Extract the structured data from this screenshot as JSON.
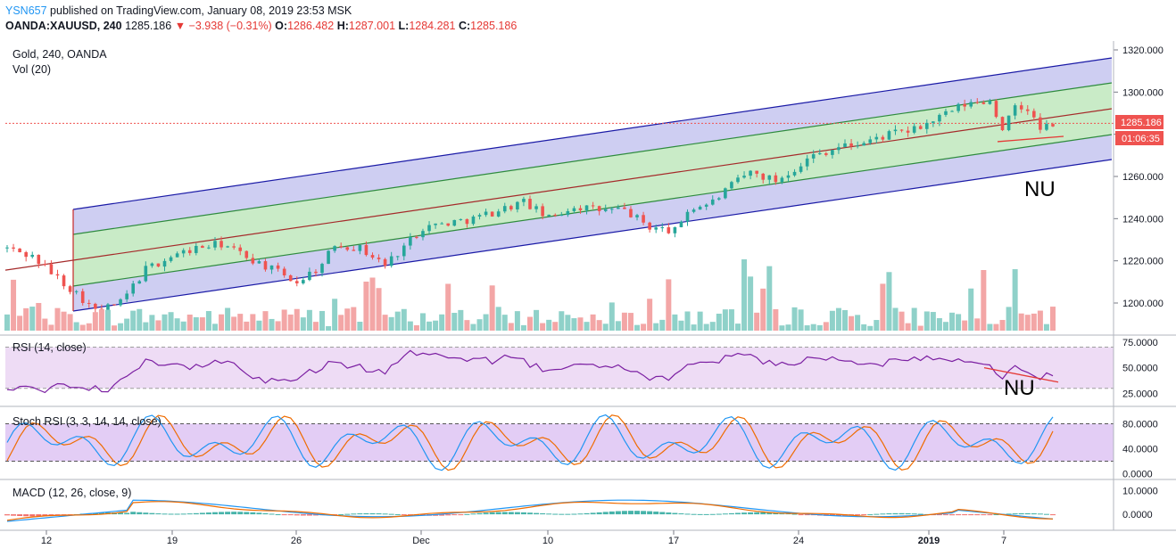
{
  "header": {
    "user": "YSN657",
    "published": "published on TradingView.com, January 08, 2019 23:53 MSK",
    "symbol": "OANDA:XAUUSD, 240",
    "last": "1285.186",
    "change_arrow": "▼",
    "change": "−3.938 (−0.31%)",
    "o_label": "O:",
    "o_value": "1286.482",
    "h_label": "H:",
    "h_value": "1287.001",
    "l_label": "L:",
    "l_value": "1284.281",
    "c_label": "C:",
    "c_value": "1285.186"
  },
  "panes": {
    "main_title": "Gold, 240, OANDA",
    "vol_title": "Vol (20)",
    "rsi_title": "RSI (14, close)",
    "stoch_title": "Stoch RSI (3, 3, 14, 14, close)",
    "macd_title": "MACD (12, 26, close, 9)"
  },
  "annotations": {
    "nu_main": "NU",
    "nu_rsi": "NU"
  },
  "price_badges": {
    "last_price": "1285.186",
    "countdown": "01:06:35"
  },
  "x_axis": {
    "labels": [
      "12",
      "19",
      "26",
      "Dec",
      "10",
      "17",
      "24",
      "2019",
      "7"
    ]
  },
  "colors": {
    "up": "#26a69a",
    "down": "#ef5350",
    "channel_outer": "#1a1aa6",
    "channel_mid": "#2e8b3e",
    "channel_center": "#a52a2a",
    "rsi_line": "#7b1fa2",
    "stoch_k": "#2196f3",
    "stoch_d": "#ef6c00"
  },
  "chart_data": [
    {
      "type": "candlestick",
      "title": "Gold, 240, OANDA",
      "ylim": [
        1185,
        1322
      ],
      "y_ticks": [
        "1320.000",
        "1300.000",
        "1280.000",
        "1260.000",
        "1240.000",
        "1220.000",
        "1200.000"
      ],
      "close_path": [
        [
          0,
          1226
        ],
        [
          4,
          1222
        ],
        [
          8,
          1212
        ],
        [
          12,
          1202
        ],
        [
          14,
          1196
        ],
        [
          18,
          1200
        ],
        [
          22,
          1216
        ],
        [
          26,
          1222
        ],
        [
          30,
          1226
        ],
        [
          34,
          1228
        ],
        [
          38,
          1222
        ],
        [
          42,
          1216
        ],
        [
          46,
          1210
        ],
        [
          50,
          1218
        ],
        [
          52,
          1228
        ],
        [
          56,
          1226
        ],
        [
          60,
          1218
        ],
        [
          62,
          1224
        ],
        [
          66,
          1236
        ],
        [
          70,
          1238
        ],
        [
          74,
          1240
        ],
        [
          78,
          1244
        ],
        [
          82,
          1248
        ],
        [
          86,
          1240
        ],
        [
          90,
          1246
        ],
        [
          94,
          1244
        ],
        [
          98,
          1244
        ],
        [
          102,
          1236
        ],
        [
          106,
          1234
        ],
        [
          108,
          1244
        ],
        [
          112,
          1248
        ],
        [
          116,
          1258
        ],
        [
          118,
          1262
        ],
        [
          122,
          1258
        ],
        [
          124,
          1262
        ],
        [
          128,
          1270
        ],
        [
          132,
          1274
        ],
        [
          136,
          1276
        ],
        [
          140,
          1280
        ],
        [
          144,
          1282
        ],
        [
          148,
          1288
        ],
        [
          152,
          1294
        ],
        [
          156,
          1296
        ],
        [
          158,
          1283
        ],
        [
          160,
          1292
        ],
        [
          162,
          1292
        ],
        [
          164,
          1282
        ],
        [
          166,
          1285
        ]
      ]
    },
    {
      "type": "bar",
      "title": "Vol (20)",
      "note": "volume histogram, up/down colored"
    },
    {
      "type": "line",
      "title": "RSI (14, close)",
      "ylim": [
        15,
        80
      ],
      "y_ticks": [
        "75.0000",
        "50.0000",
        "25.0000"
      ],
      "bands": [
        30,
        70
      ]
    },
    {
      "type": "line",
      "title": "Stoch RSI (3, 3, 14, 14, close)",
      "ylim": [
        -5,
        105
      ],
      "y_ticks": [
        "80.0000",
        "40.0000",
        "0.0000"
      ],
      "bands": [
        20,
        80
      ]
    },
    {
      "type": "line",
      "title": "MACD (12, 26, close, 9)",
      "ylim": [
        -6,
        14
      ],
      "y_ticks": [
        "10.0000",
        "0.0000"
      ]
    }
  ]
}
